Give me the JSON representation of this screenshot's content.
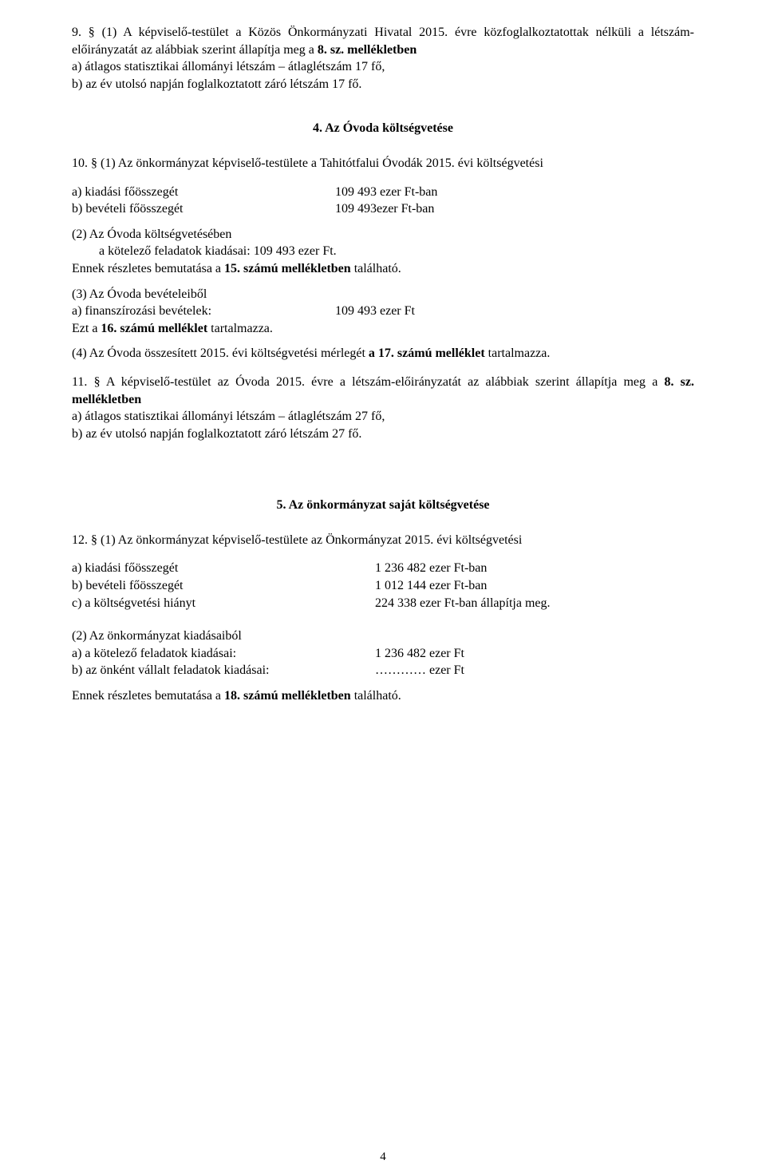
{
  "p9": {
    "text_a": "9. § (1) A képviselő-testület a Közös Önkormányzati Hivatal 2015. évre közfoglalkoztatottak nélküli a létszám-előirányzatát az alábbiak szerint állapítja meg a ",
    "bold_a": "8. sz. mellékletben",
    "line_a": "a) átlagos statisztikai állományi létszám – átlaglétszám 17 fő,",
    "line_b": "b) az év utolsó napján foglalkoztatott záró létszám  17 fő."
  },
  "sec4": {
    "heading": "4. Az Óvoda költségvetése"
  },
  "p10": {
    "intro": "10. § (1) Az önkormányzat képviselő-testülete a Tahitótfalui Óvodák 2015. évi költségvetési",
    "a_label": "a) kiadási főösszegét",
    "a_value": "109 493 ezer Ft-ban",
    "b_label": "b) bevételi főösszegét",
    "b_value": "109 493ezer Ft-ban",
    "p2_line1": "(2) Az Óvoda költségvetésében",
    "p2_line2": "a kötelező feladatok kiadásai:  109 493 ezer Ft.",
    "p2_tail_a": "Ennek részletes bemutatása a ",
    "p2_bold": "15. számú mellékletben",
    "p2_tail_b": " található.",
    "p3_line1": " (3) Az Óvoda bevételeiből",
    "p3_a_label": "a) finanszírozási bevételek:",
    "p3_a_value": "109 493 ezer Ft",
    "p3_end_a": "Ezt a ",
    "p3_bold": "16. számú melléklet",
    "p3_end_b": " tartalmazza.",
    "p4_a": "(4) Az Óvoda összesített 2015. évi költségvetési mérlegét ",
    "p4_bold": "a 17. számú melléklet",
    "p4_b": " tartalmazza."
  },
  "p11": {
    "lead_a": "11. §  A képviselő-testület az Óvoda 2015. évre a létszám-előirányzatát az alábbiak szerint állapítja meg a ",
    "bold": "8. sz. mellékletben",
    "line_a": "a) átlagos statisztikai állományi létszám – átlaglétszám 27 fő,",
    "line_b": "b) az év utolsó napján foglalkoztatott záró létszám  27 fő."
  },
  "sec5": {
    "heading": "5. Az önkormányzat saját költségvetése"
  },
  "p12": {
    "intro": "12. § (1) Az önkormányzat képviselő-testülete az Önkormányzat 2015. évi költségvetési",
    "a_label": "a) kiadási főösszegét",
    "a_value": "1 236 482   ezer Ft-ban",
    "b_label": "b) bevételi főösszegét",
    "b_value": "1 012 144   ezer Ft-ban",
    "c_label": "c) a költségvetési hiányt",
    "c_value": "   224 338   ezer Ft-ban állapítja meg.",
    "p2_line1": "(2) Az önkormányzat kiadásaiból",
    "p2_a_label": "a) a kötelező feladatok kiadásai:",
    "p2_a_value": "1 236 482  ezer Ft",
    "p2_b_label": "b) az önként vállalt feladatok kiadásai:",
    "p2_b_value": "………… ezer Ft",
    "tail_a": "Ennek részletes bemutatása a ",
    "tail_bold": "18. számú mellékletben",
    "tail_b": " található."
  },
  "page_number": "4"
}
